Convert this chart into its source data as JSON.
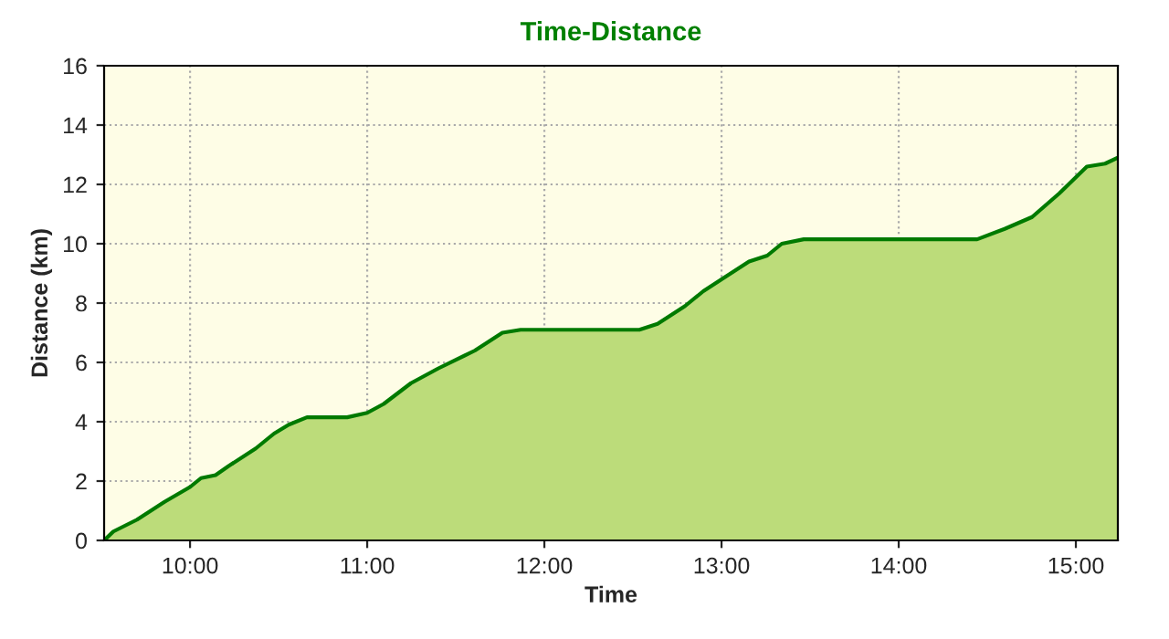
{
  "chart_data": {
    "type": "area",
    "title": "Time-Distance",
    "xlabel": "Time",
    "ylabel": "Distance (km)",
    "x": [
      9.515,
      9.567,
      9.701,
      9.856,
      10.0,
      10.062,
      10.144,
      10.216,
      10.371,
      10.474,
      10.557,
      10.66,
      10.887,
      11.0,
      11.093,
      11.247,
      11.402,
      11.608,
      11.763,
      11.866,
      12.536,
      12.639,
      12.794,
      12.897,
      13.0,
      13.155,
      13.258,
      13.34,
      13.464,
      14.443,
      14.598,
      14.753,
      14.907,
      15.062,
      15.165,
      15.237
    ],
    "series": [
      {
        "color": "#007a00",
        "values": [
          0,
          0.3,
          0.7,
          1.3,
          1.8,
          2.1,
          2.2,
          2.5,
          3.1,
          3.6,
          3.9,
          4.15,
          4.15,
          4.3,
          4.6,
          5.3,
          5.8,
          6.4,
          7.0,
          7.1,
          7.1,
          7.3,
          7.9,
          8.4,
          8.8,
          9.4,
          9.6,
          10.0,
          10.15,
          10.15,
          10.5,
          10.9,
          11.7,
          12.6,
          12.7,
          12.9
        ]
      }
    ],
    "xlim": [
      9.515,
      15.237
    ],
    "xticks": [
      {
        "value": 10,
        "label": "10:00"
      },
      {
        "value": 11,
        "label": "11:00"
      },
      {
        "value": 12,
        "label": "12:00"
      },
      {
        "value": 13,
        "label": "13:00"
      },
      {
        "value": 14,
        "label": "14:00"
      },
      {
        "value": 15,
        "label": "15:00"
      }
    ],
    "ylim": [
      0,
      16
    ],
    "yticks": [
      0,
      2,
      4,
      6,
      8,
      10,
      12,
      14,
      16
    ],
    "grid": true,
    "line_style": "solid"
  }
}
